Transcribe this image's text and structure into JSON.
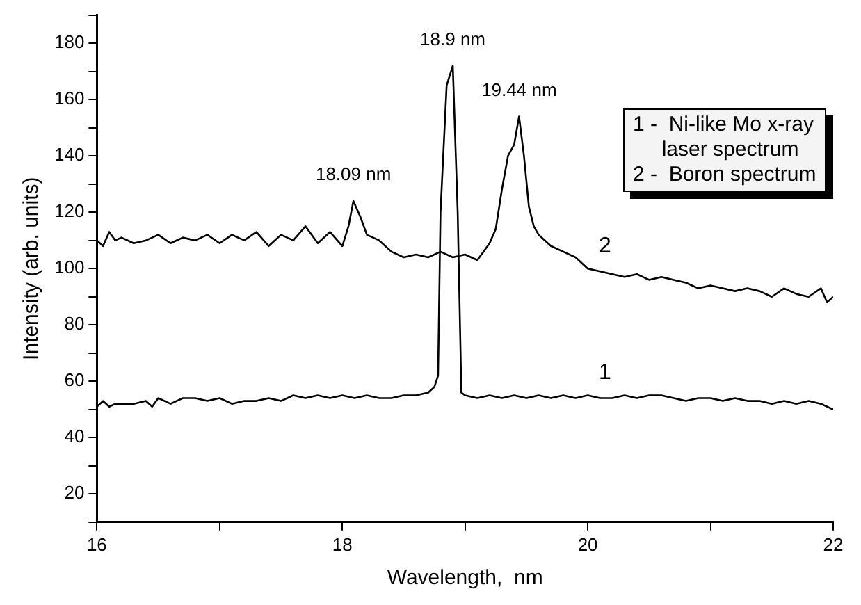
{
  "chart_data": {
    "type": "line",
    "xlabel": "Wavelength,  nm",
    "ylabel": "Intensity (arb. units)",
    "xlim": [
      16,
      22
    ],
    "xticks": [
      16,
      {
        "value": 17,
        "label": null
      },
      18,
      {
        "value": 19,
        "label": null
      },
      20,
      {
        "value": 21,
        "label": null
      },
      22
    ],
    "ylim": [
      10,
      190
    ],
    "yticks": [
      {
        "value": 10,
        "label": null
      },
      20,
      {
        "value": 30,
        "label": null
      },
      40,
      {
        "value": 50,
        "label": null
      },
      60,
      {
        "value": 70,
        "label": null
      },
      80,
      {
        "value": 90,
        "label": null
      },
      100,
      {
        "value": 110,
        "label": null
      },
      120,
      {
        "value": 130,
        "label": null
      },
      140,
      {
        "value": 150,
        "label": null
      },
      160,
      {
        "value": 170,
        "label": null
      },
      180,
      {
        "value": 190,
        "label": null
      }
    ],
    "grid": false,
    "legend": false,
    "marker": "none",
    "line_style": "solid",
    "series": [
      {
        "name": "1",
        "color": "#000000",
        "x": [
          16,
          16.05,
          16.1,
          16.15,
          16.2,
          16.3,
          16.4,
          16.45,
          16.5,
          16.6,
          16.7,
          16.8,
          16.9,
          17,
          17.1,
          17.2,
          17.3,
          17.4,
          17.5,
          17.6,
          17.7,
          17.8,
          17.9,
          18,
          18.1,
          18.2,
          18.3,
          18.4,
          18.5,
          18.6,
          18.7,
          18.75,
          18.78,
          18.8,
          18.85,
          18.9,
          18.94,
          18.97,
          19,
          19.1,
          19.2,
          19.3,
          19.4,
          19.5,
          19.6,
          19.7,
          19.8,
          19.9,
          20,
          20.1,
          20.2,
          20.3,
          20.4,
          20.5,
          20.6,
          20.7,
          20.8,
          20.9,
          21,
          21.1,
          21.2,
          21.3,
          21.4,
          21.5,
          21.6,
          21.7,
          21.8,
          21.9,
          22
        ],
        "values": [
          51,
          53,
          51,
          52,
          52,
          52,
          53,
          51,
          54,
          52,
          54,
          54,
          53,
          54,
          52,
          53,
          53,
          54,
          53,
          55,
          54,
          55,
          54,
          55,
          54,
          55,
          54,
          54,
          55,
          55,
          56,
          58,
          62,
          120,
          165,
          172,
          120,
          56,
          55,
          54,
          55,
          54,
          55,
          54,
          55,
          54,
          55,
          54,
          55,
          54,
          54,
          55,
          54,
          55,
          55,
          54,
          53,
          54,
          54,
          53,
          54,
          53,
          53,
          52,
          53,
          52,
          53,
          52,
          50
        ]
      },
      {
        "name": "2",
        "color": "#000000",
        "x": [
          16,
          16.05,
          16.1,
          16.15,
          16.2,
          16.3,
          16.4,
          16.5,
          16.6,
          16.7,
          16.8,
          16.9,
          17,
          17.1,
          17.2,
          17.3,
          17.4,
          17.5,
          17.6,
          17.7,
          17.8,
          17.9,
          18,
          18.05,
          18.09,
          18.15,
          18.2,
          18.3,
          18.4,
          18.5,
          18.6,
          18.7,
          18.8,
          18.9,
          19,
          19.1,
          19.15,
          19.2,
          19.25,
          19.3,
          19.35,
          19.4,
          19.44,
          19.48,
          19.52,
          19.56,
          19.6,
          19.65,
          19.7,
          19.8,
          19.9,
          20,
          20.1,
          20.2,
          20.3,
          20.4,
          20.5,
          20.6,
          20.7,
          20.8,
          20.9,
          21,
          21.1,
          21.2,
          21.3,
          21.4,
          21.5,
          21.6,
          21.7,
          21.8,
          21.9,
          21.95,
          22
        ],
        "values": [
          110,
          108,
          113,
          110,
          111,
          109,
          110,
          112,
          109,
          111,
          110,
          112,
          109,
          112,
          110,
          113,
          108,
          112,
          110,
          115,
          109,
          113,
          108,
          115,
          124,
          118,
          112,
          110,
          106,
          104,
          105,
          104,
          106,
          104,
          105,
          103,
          106,
          109,
          114,
          128,
          140,
          144,
          154,
          140,
          122,
          115,
          112,
          110,
          108,
          106,
          104,
          100,
          99,
          98,
          97,
          98,
          96,
          97,
          96,
          95,
          93,
          94,
          93,
          92,
          93,
          92,
          90,
          93,
          91,
          90,
          93,
          88,
          90
        ]
      }
    ],
    "annotations": [
      {
        "text": "18.09 nm",
        "x": 18.09,
        "y": 124
      },
      {
        "text": "18.9 nm",
        "x": 18.9,
        "y": 172
      },
      {
        "text": "19.44 nm",
        "x": 19.44,
        "y": 154
      },
      "1 -  Ni-like Mo x-ray\n     laser spectrum",
      "2 -  Boron spectrum"
    ]
  }
}
